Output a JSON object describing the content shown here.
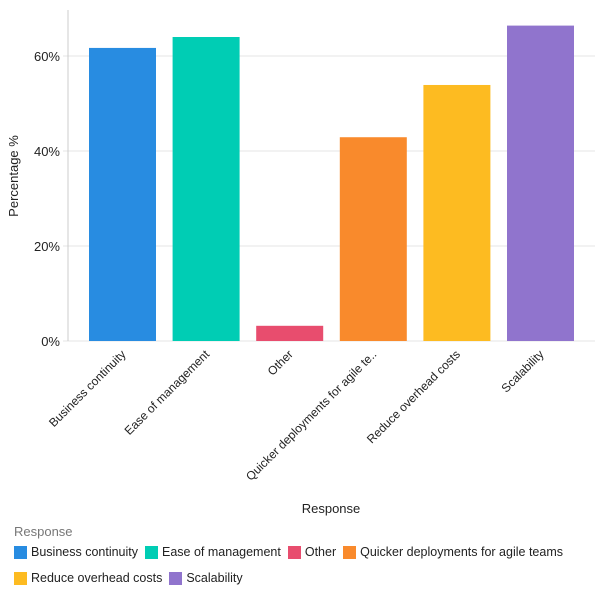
{
  "chart_data": {
    "type": "bar",
    "categories": [
      "Business continuity",
      "Ease of management",
      "Other",
      "Quicker deployments for agile teams",
      "Reduce overhead costs",
      "Scalability"
    ],
    "tick_labels": [
      "Business continuity",
      "Ease of management",
      "Other",
      "Quicker deployments for agile te..",
      "Reduce overhead costs",
      "Scalability"
    ],
    "values": [
      61.7,
      64.0,
      3.2,
      42.9,
      53.9,
      66.4
    ],
    "colors": [
      "#288ce1",
      "#00cdb4",
      "#e84d6e",
      "#f98a2c",
      "#fdbb21",
      "#9074cd"
    ],
    "xlabel": "Response",
    "ylabel": "Percentage %",
    "ylim": [
      0,
      70
    ],
    "yticks": [
      0,
      20,
      40,
      60
    ],
    "ytick_labels": [
      "0%",
      "20%",
      "40%",
      "60%"
    ],
    "grid": true,
    "legend": {
      "title": "Response",
      "placement": "bottom"
    }
  }
}
